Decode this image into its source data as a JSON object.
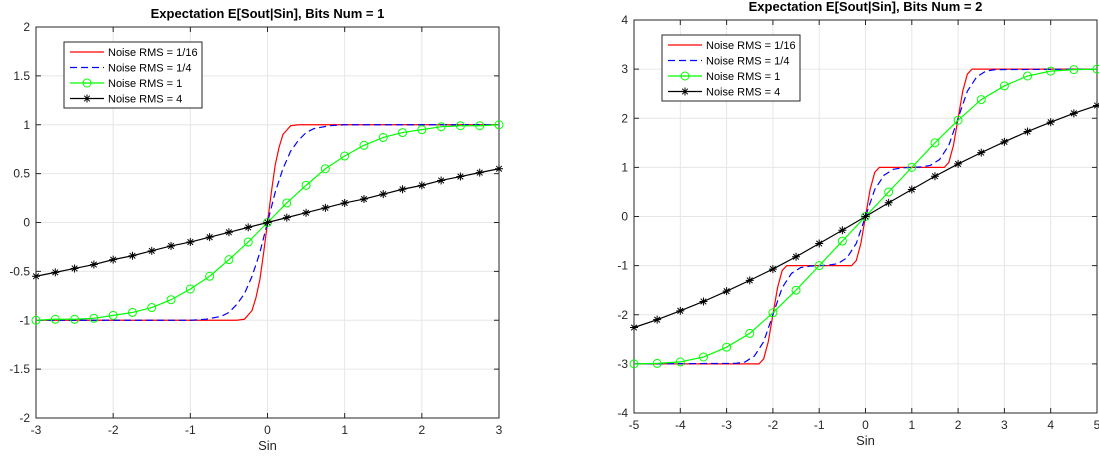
{
  "chart_data": [
    {
      "type": "line",
      "title": "Expectation E[Sout|Sin], Bits Num = 1",
      "xlabel": "Sin",
      "ylabel": "",
      "xlim": [
        -3,
        3
      ],
      "ylim": [
        -2,
        2
      ],
      "xticks": [
        -3,
        -2,
        -1,
        0,
        1,
        2,
        3
      ],
      "yticks": [
        -2,
        -1.5,
        -1,
        -0.5,
        0,
        0.5,
        1,
        1.5,
        2
      ],
      "xtick_labels": [
        "-3",
        "-2",
        "-1",
        "0",
        "1",
        "2",
        "3"
      ],
      "ytick_labels": [
        "-2",
        "-1.5",
        "-1",
        "-0.5",
        "0",
        "0.5",
        "1",
        "1.5",
        "2"
      ],
      "grid": true,
      "legend_position": "top-left",
      "series": [
        {
          "name": "Noise RMS = 1/16",
          "color": "#ff0000",
          "dash": "solid",
          "marker": "none",
          "x": [
            -3,
            -0.4,
            -0.3,
            -0.2,
            -0.15,
            -0.1,
            -0.05,
            0,
            0.05,
            0.1,
            0.15,
            0.2,
            0.3,
            0.4,
            3
          ],
          "y": [
            -1,
            -1,
            -0.99,
            -0.9,
            -0.77,
            -0.59,
            -0.31,
            0,
            0.31,
            0.59,
            0.77,
            0.9,
            0.99,
            1,
            1
          ]
        },
        {
          "name": "Noise RMS = 1/4",
          "color": "#0000ff",
          "dash": "dashed",
          "marker": "none",
          "x": [
            -3,
            -1,
            -0.8,
            -0.6,
            -0.5,
            -0.4,
            -0.3,
            -0.2,
            -0.1,
            0,
            0.1,
            0.2,
            0.3,
            0.4,
            0.5,
            0.6,
            0.8,
            1,
            3
          ],
          "y": [
            -1,
            -1,
            -0.99,
            -0.96,
            -0.92,
            -0.84,
            -0.73,
            -0.55,
            -0.31,
            0,
            0.31,
            0.55,
            0.73,
            0.84,
            0.92,
            0.96,
            0.99,
            1,
            1
          ]
        },
        {
          "name": "Noise RMS = 1",
          "color": "#00ff00",
          "dash": "solid",
          "marker": "circle",
          "x": [
            -3,
            -2.75,
            -2.5,
            -2.25,
            -2,
            -1.75,
            -1.5,
            -1.25,
            -1,
            -0.75,
            -0.5,
            -0.25,
            0,
            0.25,
            0.5,
            0.75,
            1,
            1.25,
            1.5,
            1.75,
            2,
            2.25,
            2.5,
            2.75,
            3
          ],
          "y": [
            -1,
            -0.99,
            -0.99,
            -0.98,
            -0.95,
            -0.92,
            -0.87,
            -0.79,
            -0.68,
            -0.55,
            -0.38,
            -0.2,
            0,
            0.2,
            0.38,
            0.55,
            0.68,
            0.79,
            0.87,
            0.92,
            0.95,
            0.98,
            0.99,
            0.99,
            1
          ]
        },
        {
          "name": "Noise RMS = 4",
          "color": "#000000",
          "dash": "solid",
          "marker": "star",
          "x": [
            -3,
            -2.75,
            -2.5,
            -2.25,
            -2,
            -1.75,
            -1.5,
            -1.25,
            -1,
            -0.75,
            -0.5,
            -0.25,
            0,
            0.25,
            0.5,
            0.75,
            1,
            1.25,
            1.5,
            1.75,
            2,
            2.25,
            2.5,
            2.75,
            3
          ],
          "y": [
            -0.55,
            -0.51,
            -0.47,
            -0.43,
            -0.38,
            -0.34,
            -0.29,
            -0.24,
            -0.2,
            -0.15,
            -0.1,
            -0.05,
            0,
            0.05,
            0.1,
            0.15,
            0.2,
            0.24,
            0.29,
            0.34,
            0.38,
            0.43,
            0.47,
            0.51,
            0.55
          ]
        }
      ]
    },
    {
      "type": "line",
      "title": "Expectation E[Sout|Sin], Bits Num = 2",
      "xlabel": "Sin",
      "ylabel": "",
      "xlim": [
        -5,
        5
      ],
      "ylim": [
        -4,
        4
      ],
      "xticks": [
        -5,
        -4,
        -3,
        -2,
        -1,
        0,
        1,
        2,
        3,
        4,
        5
      ],
      "yticks": [
        -4,
        -3,
        -2,
        -1,
        0,
        1,
        2,
        3,
        4
      ],
      "xtick_labels": [
        "-5",
        "-4",
        "-3",
        "-2",
        "-1",
        "0",
        "1",
        "2",
        "3",
        "4",
        "5"
      ],
      "ytick_labels": [
        "-4",
        "-3",
        "-2",
        "-1",
        "0",
        "1",
        "2",
        "3",
        "4"
      ],
      "grid": true,
      "legend_position": "top-left",
      "series": [
        {
          "name": "Noise RMS = 1/16",
          "color": "#ff0000",
          "dash": "solid",
          "marker": "none",
          "x": [
            -5,
            -2.3,
            -2.2,
            -2.1,
            -2,
            -1.9,
            -1.8,
            -1.7,
            -0.3,
            -0.2,
            -0.1,
            0,
            0.1,
            0.2,
            0.3,
            1.7,
            1.8,
            1.9,
            2,
            2.1,
            2.2,
            2.3,
            5
          ],
          "y": [
            -3,
            -3,
            -2.9,
            -2.55,
            -2,
            -1.45,
            -1.1,
            -1,
            -1,
            -0.9,
            -0.55,
            0,
            0.55,
            0.9,
            1,
            1,
            1.1,
            1.45,
            2,
            2.55,
            2.9,
            3,
            3
          ],
          "x_note": ""
        },
        {
          "name": "Noise RMS = 1/4",
          "color": "#0000ff",
          "dash": "dashed",
          "marker": "none",
          "x": [
            -5,
            -2.8,
            -2.6,
            -2.4,
            -2.2,
            -2,
            -1.8,
            -1.6,
            -1.4,
            -1.2,
            -0.8,
            -0.6,
            -0.4,
            -0.2,
            0,
            0.2,
            0.4,
            0.6,
            0.8,
            1.2,
            1.4,
            1.6,
            1.8,
            2,
            2.2,
            2.4,
            2.6,
            2.8,
            5
          ],
          "y": [
            -3,
            -2.99,
            -2.96,
            -2.84,
            -2.55,
            -2,
            -1.45,
            -1.16,
            -1.04,
            -1.01,
            -0.99,
            -0.96,
            -0.84,
            -0.55,
            0,
            0.55,
            0.84,
            0.96,
            0.99,
            1.01,
            1.04,
            1.16,
            1.45,
            2,
            2.55,
            2.84,
            2.96,
            2.99,
            3
          ]
        },
        {
          "name": "Noise RMS = 1",
          "color": "#00ff00",
          "dash": "solid",
          "marker": "circle",
          "x": [
            -5,
            -4.5,
            -4,
            -3.5,
            -3,
            -2.5,
            -2,
            -1.5,
            -1,
            -0.5,
            0,
            0.5,
            1,
            1.5,
            2,
            2.5,
            3,
            3.5,
            4,
            4.5,
            5
          ],
          "y": [
            -3,
            -2.99,
            -2.96,
            -2.86,
            -2.66,
            -2.38,
            -1.96,
            -1.5,
            -1,
            -0.5,
            0,
            0.5,
            1,
            1.5,
            1.96,
            2.38,
            2.66,
            2.86,
            2.96,
            2.99,
            3
          ]
        },
        {
          "name": "Noise RMS = 4",
          "color": "#000000",
          "dash": "solid",
          "marker": "star",
          "x": [
            -5,
            -4.5,
            -4,
            -3.5,
            -3,
            -2.5,
            -2,
            -1.5,
            -1,
            -0.5,
            0,
            0.5,
            1,
            1.5,
            2,
            2.5,
            3,
            3.5,
            4,
            4.5,
            5
          ],
          "y": [
            -2.26,
            -2.1,
            -1.92,
            -1.73,
            -1.52,
            -1.3,
            -1.07,
            -0.82,
            -0.55,
            -0.28,
            0,
            0.28,
            0.55,
            0.82,
            1.07,
            1.3,
            1.52,
            1.73,
            1.92,
            2.1,
            2.26
          ]
        }
      ]
    }
  ]
}
